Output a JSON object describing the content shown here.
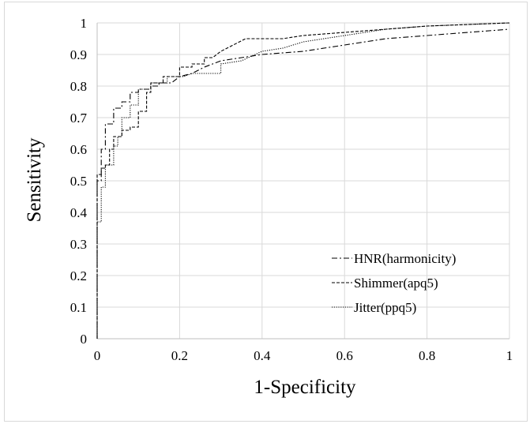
{
  "chart_data": {
    "type": "line",
    "xlabel": "1-Specificity",
    "ylabel": "Sensitivity",
    "xlim": [
      0,
      1
    ],
    "ylim": [
      0,
      1
    ],
    "x_ticks": [
      "0",
      "0.2",
      "0.4",
      "0.6",
      "0.8",
      "1"
    ],
    "y_ticks": [
      "0",
      "0.1",
      "0.2",
      "0.3",
      "0.4",
      "0.5",
      "0.6",
      "0.7",
      "0.8",
      "0.9",
      "1"
    ],
    "grid": true,
    "legend_position": "bottom-right",
    "series": [
      {
        "name": "HNR(harmonicity)",
        "dash": "dashdot",
        "color": "#000000",
        "points": [
          [
            0,
            0
          ],
          [
            0,
            0.5
          ],
          [
            0.01,
            0.5
          ],
          [
            0.01,
            0.6
          ],
          [
            0.02,
            0.6
          ],
          [
            0.02,
            0.68
          ],
          [
            0.04,
            0.68
          ],
          [
            0.04,
            0.73
          ],
          [
            0.06,
            0.73
          ],
          [
            0.06,
            0.75
          ],
          [
            0.08,
            0.75
          ],
          [
            0.08,
            0.78
          ],
          [
            0.1,
            0.78
          ],
          [
            0.1,
            0.79
          ],
          [
            0.13,
            0.79
          ],
          [
            0.13,
            0.8
          ],
          [
            0.15,
            0.8
          ],
          [
            0.15,
            0.81
          ],
          [
            0.18,
            0.81
          ],
          [
            0.2,
            0.83
          ],
          [
            0.23,
            0.84
          ],
          [
            0.26,
            0.86
          ],
          [
            0.3,
            0.88
          ],
          [
            0.35,
            0.89
          ],
          [
            0.4,
            0.9
          ],
          [
            0.5,
            0.91
          ],
          [
            0.6,
            0.93
          ],
          [
            0.7,
            0.95
          ],
          [
            0.8,
            0.96
          ],
          [
            0.9,
            0.97
          ],
          [
            1,
            0.98
          ]
        ]
      },
      {
        "name": "Shimmer(apq5)",
        "dash": "dashed",
        "color": "#000000",
        "points": [
          [
            0,
            0
          ],
          [
            0,
            0.52
          ],
          [
            0.01,
            0.52
          ],
          [
            0.01,
            0.54
          ],
          [
            0.02,
            0.54
          ],
          [
            0.02,
            0.55
          ],
          [
            0.03,
            0.55
          ],
          [
            0.03,
            0.6
          ],
          [
            0.04,
            0.6
          ],
          [
            0.04,
            0.64
          ],
          [
            0.06,
            0.64
          ],
          [
            0.06,
            0.66
          ],
          [
            0.08,
            0.66
          ],
          [
            0.08,
            0.67
          ],
          [
            0.1,
            0.67
          ],
          [
            0.1,
            0.72
          ],
          [
            0.12,
            0.72
          ],
          [
            0.12,
            0.78
          ],
          [
            0.13,
            0.78
          ],
          [
            0.13,
            0.81
          ],
          [
            0.16,
            0.81
          ],
          [
            0.16,
            0.83
          ],
          [
            0.2,
            0.83
          ],
          [
            0.2,
            0.86
          ],
          [
            0.23,
            0.86
          ],
          [
            0.23,
            0.87
          ],
          [
            0.26,
            0.87
          ],
          [
            0.26,
            0.89
          ],
          [
            0.28,
            0.89
          ],
          [
            0.3,
            0.91
          ],
          [
            0.33,
            0.93
          ],
          [
            0.36,
            0.95
          ],
          [
            0.45,
            0.95
          ],
          [
            0.5,
            0.96
          ],
          [
            0.6,
            0.97
          ],
          [
            0.7,
            0.98
          ],
          [
            0.8,
            0.99
          ],
          [
            0.9,
            0.995
          ],
          [
            1,
            1
          ]
        ]
      },
      {
        "name": "Jitter(ppq5)",
        "dash": "dotted",
        "color": "#000000",
        "points": [
          [
            0,
            0
          ],
          [
            0,
            0.37
          ],
          [
            0.01,
            0.37
          ],
          [
            0.01,
            0.48
          ],
          [
            0.02,
            0.48
          ],
          [
            0.02,
            0.55
          ],
          [
            0.04,
            0.55
          ],
          [
            0.04,
            0.61
          ],
          [
            0.05,
            0.61
          ],
          [
            0.05,
            0.64
          ],
          [
            0.06,
            0.64
          ],
          [
            0.06,
            0.7
          ],
          [
            0.08,
            0.7
          ],
          [
            0.08,
            0.74
          ],
          [
            0.1,
            0.74
          ],
          [
            0.1,
            0.79
          ],
          [
            0.13,
            0.79
          ],
          [
            0.13,
            0.81
          ],
          [
            0.17,
            0.81
          ],
          [
            0.17,
            0.83
          ],
          [
            0.21,
            0.83
          ],
          [
            0.23,
            0.84
          ],
          [
            0.3,
            0.84
          ],
          [
            0.3,
            0.87
          ],
          [
            0.35,
            0.88
          ],
          [
            0.4,
            0.91
          ],
          [
            0.45,
            0.92
          ],
          [
            0.5,
            0.94
          ],
          [
            0.6,
            0.96
          ],
          [
            0.7,
            0.98
          ],
          [
            0.8,
            0.99
          ],
          [
            1,
            1
          ]
        ]
      }
    ]
  }
}
